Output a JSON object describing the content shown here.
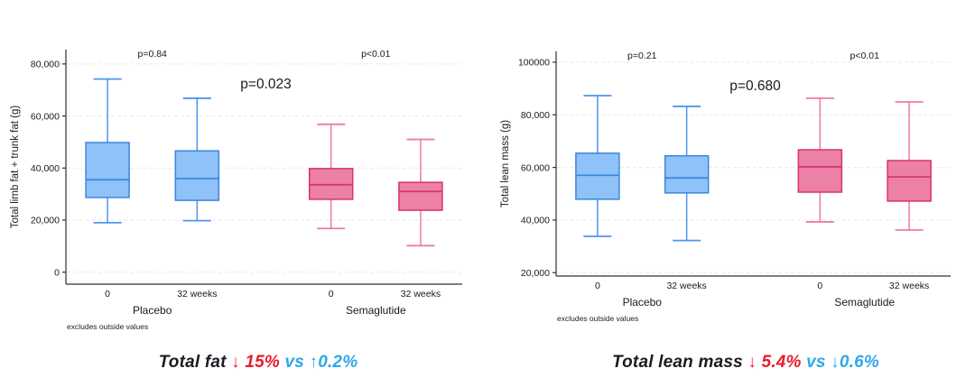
{
  "colors": {
    "blue_fill": "#8FC2F8",
    "blue_stroke": "#3A86E0",
    "blue_whisker": "#4E95F0",
    "pink_fill": "#EC80A6",
    "pink_stroke": "#D6336C",
    "pink_whisker": "#ED7BA4",
    "caption_dark": "#1C1B22",
    "caption_red": "#EA1C2D",
    "caption_blue": "#2EA8E8",
    "grid": "#E9E9E9",
    "axis": "#303030",
    "text": "#1A1A1A"
  },
  "chart_data": [
    {
      "type": "boxplot",
      "ylabel": "Total limb fat + trunk fat (g)",
      "note": "excludes outside values",
      "ylim": [
        -4600,
        85500
      ],
      "yticks": [
        {
          "value": 0,
          "label": "0"
        },
        {
          "value": 20000,
          "label": "20,000"
        },
        {
          "value": 40000,
          "label": "40,000"
        },
        {
          "value": 60000,
          "label": "60,000"
        },
        {
          "value": 80000,
          "label": "80,000"
        }
      ],
      "annotations": {
        "group1_p": "p=0.84",
        "group2_p": "p<0.01",
        "center_p": "p=0.023"
      },
      "groups": [
        {
          "label": "Placebo",
          "scheme": "blue",
          "boxes": [
            {
              "label": "0",
              "low": 19000,
              "q1": 28700,
              "median": 35500,
              "q3": 49800,
              "high": 74200
            },
            {
              "label": "32 weeks",
              "low": 19800,
              "q1": 27600,
              "median": 36000,
              "q3": 46600,
              "high": 66800
            }
          ]
        },
        {
          "label": "Semaglutide",
          "scheme": "pink",
          "boxes": [
            {
              "label": "0",
              "low": 16800,
              "q1": 28000,
              "median": 33600,
              "q3": 39800,
              "high": 56800
            },
            {
              "label": "32 weeks",
              "low": 10200,
              "q1": 23800,
              "median": 31000,
              "q3": 34500,
              "high": 51000
            }
          ]
        }
      ],
      "caption": [
        {
          "text": "Total fat ",
          "color": "dark"
        },
        {
          "text": "↓ ",
          "color": "red"
        },
        {
          "text": "15%",
          "color": "red"
        },
        {
          "text": " vs ",
          "color": "blue"
        },
        {
          "text": "↑",
          "color": "blue"
        },
        {
          "text": "0.2%",
          "color": "blue"
        }
      ]
    },
    {
      "type": "boxplot",
      "ylabel": "Total lean mass (g)",
      "note": "excludes outside values",
      "ylim": [
        18700,
        104100
      ],
      "yticks": [
        {
          "value": 20000,
          "label": "20,000"
        },
        {
          "value": 40000,
          "label": "40,000"
        },
        {
          "value": 60000,
          "label": "60,000"
        },
        {
          "value": 80000,
          "label": "80,000"
        },
        {
          "value": 100000,
          "label": "100000"
        }
      ],
      "annotations": {
        "group1_p": "p=0.21",
        "group2_p": "p<0.01",
        "center_p": "p=0.680"
      },
      "groups": [
        {
          "label": "Placebo",
          "scheme": "blue",
          "boxes": [
            {
              "label": "0",
              "low": 33800,
              "q1": 47900,
              "median": 57000,
              "q3": 65400,
              "high": 87300
            },
            {
              "label": "32 weeks",
              "low": 32200,
              "q1": 50300,
              "median": 56000,
              "q3": 64400,
              "high": 83200
            }
          ]
        },
        {
          "label": "Semaglutide",
          "scheme": "pink",
          "boxes": [
            {
              "label": "0",
              "low": 39300,
              "q1": 50600,
              "median": 60200,
              "q3": 66700,
              "high": 86300
            },
            {
              "label": "32 weeks",
              "low": 36200,
              "q1": 47200,
              "median": 56400,
              "q3": 62600,
              "high": 84900
            }
          ]
        }
      ],
      "caption": [
        {
          "text": "Total lean mass ",
          "color": "dark"
        },
        {
          "text": "↓ ",
          "color": "red"
        },
        {
          "text": "5.4%",
          "color": "red"
        },
        {
          "text": " vs ",
          "color": "blue"
        },
        {
          "text": "↓",
          "color": "blue"
        },
        {
          "text": "0.6%",
          "color": "blue"
        }
      ]
    }
  ]
}
